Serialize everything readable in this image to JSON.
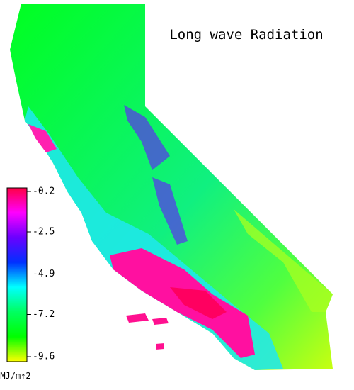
{
  "title": "Long wave Radiation",
  "legend": {
    "unit": "MJ/m↑2",
    "range": [
      -9.6,
      -0.2
    ],
    "ticks": [
      -0.2,
      -2.5,
      -4.9,
      -7.2,
      -9.6
    ],
    "colors": [
      "#ff0044",
      "#ff00ff",
      "#6a00ff",
      "#0030ff",
      "#00ffff",
      "#00ff60",
      "#00ff00",
      "#ffff00"
    ]
  }
}
